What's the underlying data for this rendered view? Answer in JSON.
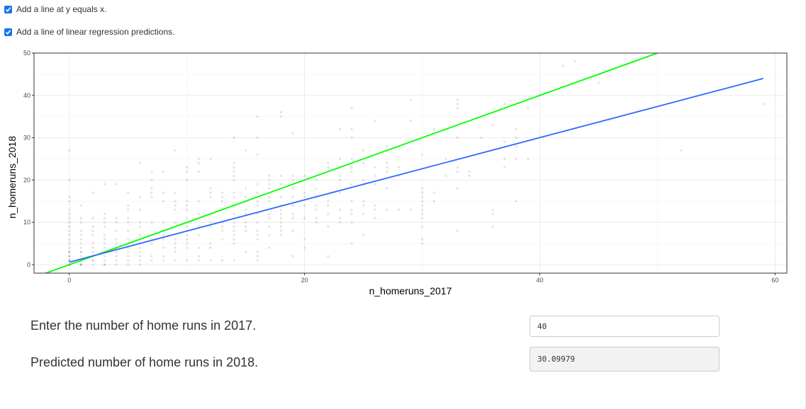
{
  "options": {
    "identity_line": {
      "label": "Add a line at y equals x.",
      "checked": true
    },
    "regression_line": {
      "label": "Add a line of linear regression predictions.",
      "checked": true
    }
  },
  "form": {
    "input_label": "Enter the number of home runs in 2017.",
    "input_value": "40",
    "output_label": "Predicted number of home runs in 2018.",
    "output_value": "30.09979"
  },
  "colors": {
    "checkbox": "#1a73e8",
    "identity_line": "#00ff00",
    "regression_line": "#3366ff",
    "point": "#000000"
  },
  "chart_data": {
    "type": "scatter",
    "xlabel": "n_homeruns_2017",
    "ylabel": "n_homeruns_2018",
    "xlim": [
      -3,
      61
    ],
    "ylim": [
      -2,
      50
    ],
    "xticks": [
      0,
      20,
      40,
      60
    ],
    "yticks": [
      0,
      10,
      20,
      30,
      40,
      50
    ],
    "grid": true,
    "point_alpha": 0.1,
    "lines": [
      {
        "name": "y = x",
        "color": "#00ff00",
        "intercept": 0,
        "slope": 1
      },
      {
        "name": "linear regression",
        "color": "#3366ff",
        "x": [
          0,
          59
        ],
        "y": [
          0.6,
          44
        ]
      }
    ],
    "points": [
      [
        0,
        0
      ],
      [
        0,
        0
      ],
      [
        0,
        0
      ],
      [
        0,
        0
      ],
      [
        0,
        1
      ],
      [
        0,
        1
      ],
      [
        0,
        1
      ],
      [
        0,
        2
      ],
      [
        0,
        2
      ],
      [
        0,
        3
      ],
      [
        0,
        3
      ],
      [
        0,
        4
      ],
      [
        0,
        5
      ],
      [
        0,
        6
      ],
      [
        0,
        7
      ],
      [
        0,
        8
      ],
      [
        0,
        9
      ],
      [
        0,
        10
      ],
      [
        0,
        11
      ],
      [
        0,
        12
      ],
      [
        0,
        13
      ],
      [
        0,
        15
      ],
      [
        0,
        16
      ],
      [
        0,
        20
      ],
      [
        0,
        27
      ],
      [
        1,
        0
      ],
      [
        1,
        0
      ],
      [
        1,
        0
      ],
      [
        1,
        1
      ],
      [
        1,
        1
      ],
      [
        1,
        2
      ],
      [
        1,
        3
      ],
      [
        1,
        3
      ],
      [
        1,
        4
      ],
      [
        1,
        5
      ],
      [
        1,
        6
      ],
      [
        1,
        7
      ],
      [
        1,
        8
      ],
      [
        1,
        10
      ],
      [
        1,
        11
      ],
      [
        1,
        14
      ],
      [
        2,
        0
      ],
      [
        2,
        1
      ],
      [
        2,
        1
      ],
      [
        2,
        2
      ],
      [
        2,
        3
      ],
      [
        2,
        4
      ],
      [
        2,
        5
      ],
      [
        2,
        7
      ],
      [
        2,
        8
      ],
      [
        2,
        9
      ],
      [
        2,
        11
      ],
      [
        2,
        17
      ],
      [
        3,
        0
      ],
      [
        3,
        0
      ],
      [
        3,
        1
      ],
      [
        3,
        2
      ],
      [
        3,
        3
      ],
      [
        3,
        4
      ],
      [
        3,
        5
      ],
      [
        3,
        6
      ],
      [
        3,
        7
      ],
      [
        3,
        9
      ],
      [
        3,
        10
      ],
      [
        3,
        11
      ],
      [
        3,
        12
      ],
      [
        3,
        19
      ],
      [
        4,
        0
      ],
      [
        4,
        1
      ],
      [
        4,
        2
      ],
      [
        4,
        3
      ],
      [
        4,
        4
      ],
      [
        4,
        5
      ],
      [
        4,
        6
      ],
      [
        4,
        8
      ],
      [
        4,
        10
      ],
      [
        4,
        11
      ],
      [
        4,
        19
      ],
      [
        5,
        0
      ],
      [
        5,
        1
      ],
      [
        5,
        2
      ],
      [
        5,
        3
      ],
      [
        5,
        4
      ],
      [
        5,
        5
      ],
      [
        5,
        6
      ],
      [
        5,
        8
      ],
      [
        5,
        10
      ],
      [
        5,
        11
      ],
      [
        5,
        13
      ],
      [
        5,
        14
      ],
      [
        5,
        17
      ],
      [
        6,
        0
      ],
      [
        6,
        1
      ],
      [
        6,
        2
      ],
      [
        6,
        3
      ],
      [
        6,
        4
      ],
      [
        6,
        5
      ],
      [
        6,
        7
      ],
      [
        6,
        9
      ],
      [
        6,
        10
      ],
      [
        6,
        13
      ],
      [
        6,
        16
      ],
      [
        6,
        24
      ],
      [
        7,
        1
      ],
      [
        7,
        2
      ],
      [
        7,
        5
      ],
      [
        7,
        6
      ],
      [
        7,
        10
      ],
      [
        7,
        16
      ],
      [
        7,
        17
      ],
      [
        7,
        18
      ],
      [
        7,
        20
      ],
      [
        7,
        22
      ],
      [
        8,
        1
      ],
      [
        8,
        2
      ],
      [
        8,
        4
      ],
      [
        8,
        6
      ],
      [
        8,
        7
      ],
      [
        8,
        8
      ],
      [
        8,
        10
      ],
      [
        8,
        15
      ],
      [
        8,
        17
      ],
      [
        8,
        22
      ],
      [
        9,
        1
      ],
      [
        9,
        3
      ],
      [
        9,
        4
      ],
      [
        9,
        5
      ],
      [
        9,
        6
      ],
      [
        9,
        10
      ],
      [
        9,
        13
      ],
      [
        9,
        14
      ],
      [
        9,
        15
      ],
      [
        9,
        17
      ],
      [
        9,
        27
      ],
      [
        10,
        1
      ],
      [
        10,
        4
      ],
      [
        10,
        5
      ],
      [
        10,
        6
      ],
      [
        10,
        7
      ],
      [
        10,
        9
      ],
      [
        10,
        10
      ],
      [
        10,
        11
      ],
      [
        10,
        13
      ],
      [
        10,
        14
      ],
      [
        10,
        15
      ],
      [
        10,
        20
      ],
      [
        10,
        22
      ],
      [
        10,
        23
      ],
      [
        11,
        1
      ],
      [
        11,
        2
      ],
      [
        11,
        4
      ],
      [
        11,
        7
      ],
      [
        11,
        9
      ],
      [
        11,
        12
      ],
      [
        11,
        15
      ],
      [
        11,
        22
      ],
      [
        11,
        24
      ],
      [
        11,
        25
      ],
      [
        12,
        1
      ],
      [
        12,
        4
      ],
      [
        12,
        5
      ],
      [
        12,
        9
      ],
      [
        12,
        10
      ],
      [
        12,
        12
      ],
      [
        12,
        16
      ],
      [
        12,
        17
      ],
      [
        12,
        18
      ],
      [
        12,
        25
      ],
      [
        13,
        1
      ],
      [
        13,
        6
      ],
      [
        13,
        8
      ],
      [
        13,
        9
      ],
      [
        13,
        10
      ],
      [
        13,
        13
      ],
      [
        13,
        15
      ],
      [
        13,
        16
      ],
      [
        13,
        17
      ],
      [
        14,
        1
      ],
      [
        14,
        5
      ],
      [
        14,
        6
      ],
      [
        14,
        7
      ],
      [
        14,
        8
      ],
      [
        14,
        9
      ],
      [
        14,
        10
      ],
      [
        14,
        12
      ],
      [
        14,
        14
      ],
      [
        14,
        16
      ],
      [
        14,
        17
      ],
      [
        14,
        20
      ],
      [
        14,
        21
      ],
      [
        14,
        22
      ],
      [
        14,
        23
      ],
      [
        14,
        24
      ],
      [
        14,
        30
      ],
      [
        15,
        3
      ],
      [
        15,
        8
      ],
      [
        15,
        9
      ],
      [
        15,
        10
      ],
      [
        15,
        12
      ],
      [
        15,
        13
      ],
      [
        15,
        15
      ],
      [
        15,
        16
      ],
      [
        15,
        18
      ],
      [
        15,
        27
      ],
      [
        16,
        1
      ],
      [
        16,
        2
      ],
      [
        16,
        3
      ],
      [
        16,
        6
      ],
      [
        16,
        7
      ],
      [
        16,
        8
      ],
      [
        16,
        10
      ],
      [
        16,
        12
      ],
      [
        16,
        14
      ],
      [
        16,
        15
      ],
      [
        16,
        17
      ],
      [
        16,
        19
      ],
      [
        16,
        26
      ],
      [
        16,
        30
      ],
      [
        16,
        35
      ],
      [
        17,
        4
      ],
      [
        17,
        7
      ],
      [
        17,
        9
      ],
      [
        17,
        11
      ],
      [
        17,
        12
      ],
      [
        17,
        15
      ],
      [
        17,
        16
      ],
      [
        17,
        18
      ],
      [
        17,
        19
      ],
      [
        17,
        20
      ],
      [
        17,
        21
      ],
      [
        18,
        7
      ],
      [
        18,
        8
      ],
      [
        18,
        9
      ],
      [
        18,
        10
      ],
      [
        18,
        11
      ],
      [
        18,
        12
      ],
      [
        18,
        13
      ],
      [
        18,
        14
      ],
      [
        18,
        16
      ],
      [
        18,
        19
      ],
      [
        18,
        21
      ],
      [
        18,
        35
      ],
      [
        18,
        36
      ],
      [
        19,
        2
      ],
      [
        19,
        8
      ],
      [
        19,
        11
      ],
      [
        19,
        12
      ],
      [
        19,
        14
      ],
      [
        19,
        16
      ],
      [
        19,
        18
      ],
      [
        19,
        20
      ],
      [
        19,
        21
      ],
      [
        19,
        31
      ],
      [
        20,
        4
      ],
      [
        20,
        6
      ],
      [
        20,
        11
      ],
      [
        20,
        14
      ],
      [
        20,
        16
      ],
      [
        20,
        17
      ],
      [
        20,
        21
      ],
      [
        21,
        10
      ],
      [
        21,
        11
      ],
      [
        21,
        13
      ],
      [
        21,
        14
      ],
      [
        21,
        16
      ],
      [
        21,
        18
      ],
      [
        21,
        20
      ],
      [
        22,
        2
      ],
      [
        22,
        9
      ],
      [
        22,
        12
      ],
      [
        22,
        14
      ],
      [
        22,
        15
      ],
      [
        22,
        23
      ],
      [
        22,
        24
      ],
      [
        23,
        10
      ],
      [
        23,
        11
      ],
      [
        23,
        13
      ],
      [
        23,
        17
      ],
      [
        23,
        20
      ],
      [
        23,
        21
      ],
      [
        23,
        23
      ],
      [
        23,
        25
      ],
      [
        23,
        32
      ],
      [
        24,
        5
      ],
      [
        24,
        10
      ],
      [
        24,
        12
      ],
      [
        24,
        13
      ],
      [
        24,
        15
      ],
      [
        24,
        19
      ],
      [
        24,
        22
      ],
      [
        24,
        23
      ],
      [
        24,
        25
      ],
      [
        24,
        30
      ],
      [
        24,
        32
      ],
      [
        24,
        37
      ],
      [
        25,
        7
      ],
      [
        25,
        12
      ],
      [
        25,
        14
      ],
      [
        25,
        15
      ],
      [
        25,
        19
      ],
      [
        25,
        20
      ],
      [
        25,
        24
      ],
      [
        25,
        27
      ],
      [
        26,
        11
      ],
      [
        26,
        13
      ],
      [
        26,
        14
      ],
      [
        26,
        19
      ],
      [
        26,
        21
      ],
      [
        26,
        23
      ],
      [
        26,
        34
      ],
      [
        27,
        13
      ],
      [
        27,
        18
      ],
      [
        27,
        22
      ],
      [
        27,
        23
      ],
      [
        27,
        24
      ],
      [
        27,
        27
      ],
      [
        27,
        28
      ],
      [
        28,
        13
      ],
      [
        28,
        21
      ],
      [
        28,
        23
      ],
      [
        29,
        13
      ],
      [
        29,
        34
      ],
      [
        29,
        39
      ],
      [
        30,
        5
      ],
      [
        30,
        6
      ],
      [
        30,
        9
      ],
      [
        30,
        11
      ],
      [
        30,
        12
      ],
      [
        30,
        13
      ],
      [
        30,
        14
      ],
      [
        30,
        15
      ],
      [
        30,
        16
      ],
      [
        30,
        17
      ],
      [
        30,
        18
      ],
      [
        30,
        26
      ],
      [
        31,
        15
      ],
      [
        31,
        17
      ],
      [
        31,
        32
      ],
      [
        32,
        21
      ],
      [
        32,
        25
      ],
      [
        33,
        8
      ],
      [
        33,
        18
      ],
      [
        33,
        22
      ],
      [
        33,
        23
      ],
      [
        33,
        30
      ],
      [
        33,
        37
      ],
      [
        33,
        38
      ],
      [
        33,
        39
      ],
      [
        34,
        21
      ],
      [
        34,
        22
      ],
      [
        35,
        30
      ],
      [
        36,
        9
      ],
      [
        36,
        12
      ],
      [
        36,
        13
      ],
      [
        36,
        33
      ],
      [
        37,
        23
      ],
      [
        37,
        25
      ],
      [
        37,
        29
      ],
      [
        37,
        38
      ],
      [
        38,
        15
      ],
      [
        38,
        25
      ],
      [
        38,
        28
      ],
      [
        38,
        30
      ],
      [
        38,
        32
      ],
      [
        39,
        25
      ],
      [
        39,
        37
      ],
      [
        40,
        40
      ],
      [
        42,
        47
      ],
      [
        43,
        48
      ],
      [
        45,
        43
      ],
      [
        52,
        27
      ],
      [
        59,
        38
      ]
    ]
  }
}
